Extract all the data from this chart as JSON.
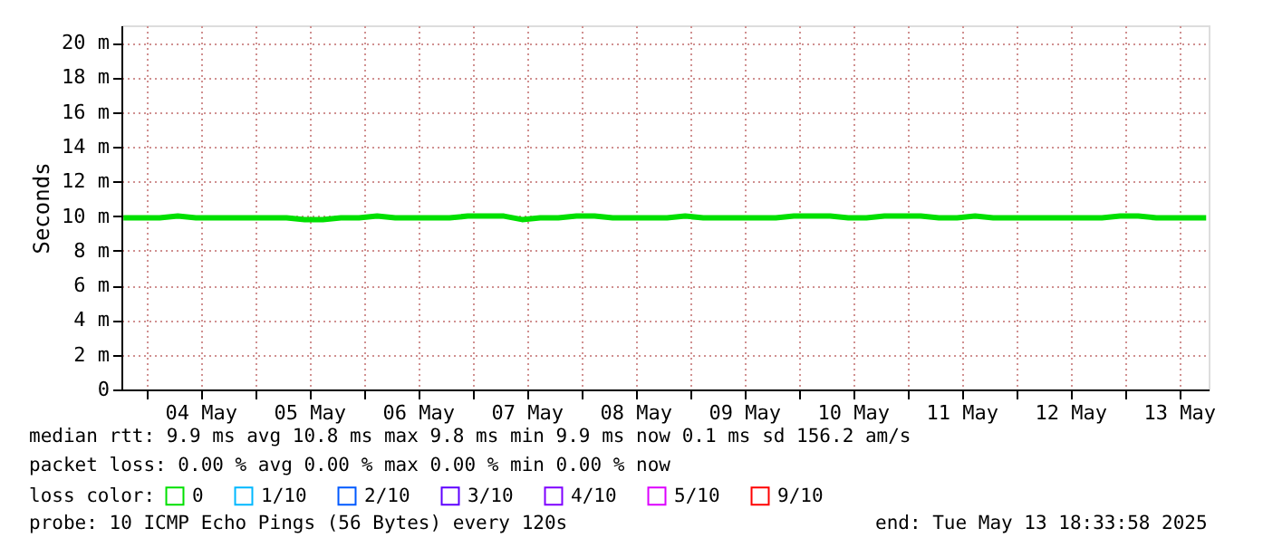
{
  "chart_data": {
    "type": "line",
    "ylabel": "Seconds",
    "legend_title": "loss color:",
    "legend": "bottom",
    "grid": true,
    "marker": "none",
    "line_style": "solid",
    "xlim": [
      "2025-05-03T18:33",
      "2025-05-13T18:33"
    ],
    "ylim": [
      0,
      21
    ],
    "xticks": [
      {
        "value": "2025-05-04T00:00",
        "label": null
      },
      {
        "value": "2025-05-04T12:00",
        "label": "04 May"
      },
      {
        "value": "2025-05-05T00:00",
        "label": null
      },
      {
        "value": "2025-05-05T12:00",
        "label": "05 May"
      },
      {
        "value": "2025-05-06T00:00",
        "label": null
      },
      {
        "value": "2025-05-06T12:00",
        "label": "06 May"
      },
      {
        "value": "2025-05-07T00:00",
        "label": null
      },
      {
        "value": "2025-05-07T12:00",
        "label": "07 May"
      },
      {
        "value": "2025-05-08T00:00",
        "label": null
      },
      {
        "value": "2025-05-08T12:00",
        "label": "08 May"
      },
      {
        "value": "2025-05-09T00:00",
        "label": null
      },
      {
        "value": "2025-05-09T12:00",
        "label": "09 May"
      },
      {
        "value": "2025-05-10T00:00",
        "label": null
      },
      {
        "value": "2025-05-10T12:00",
        "label": "10 May"
      },
      {
        "value": "2025-05-11T00:00",
        "label": null
      },
      {
        "value": "2025-05-11T12:00",
        "label": "11 May"
      },
      {
        "value": "2025-05-12T00:00",
        "label": null
      },
      {
        "value": "2025-05-12T12:00",
        "label": "12 May"
      },
      {
        "value": "2025-05-13T00:00",
        "label": null
      },
      {
        "value": "2025-05-13T12:00",
        "label": "13 May"
      }
    ],
    "yticks": [
      0,
      {
        "value": 2,
        "label": "2 m"
      },
      {
        "value": 4,
        "label": "4 m"
      },
      {
        "value": 6,
        "label": "6 m"
      },
      {
        "value": 8,
        "label": "8 m"
      },
      {
        "value": 10,
        "label": "10 m"
      },
      {
        "value": 12,
        "label": "12 m"
      },
      {
        "value": 14,
        "label": "14 m"
      },
      {
        "value": 16,
        "label": "16 m"
      },
      {
        "value": 18,
        "label": "18 m"
      },
      {
        "value": 20,
        "label": "20 m"
      }
    ],
    "x": [
      "2025-05-03T19:00",
      "2025-05-03T23:00",
      "2025-05-04T03:00",
      "2025-05-04T07:00",
      "2025-05-04T11:00",
      "2025-05-04T15:00",
      "2025-05-04T19:00",
      "2025-05-04T23:00",
      "2025-05-05T03:00",
      "2025-05-05T07:00",
      "2025-05-05T11:00",
      "2025-05-05T15:00",
      "2025-05-05T19:00",
      "2025-05-05T23:00",
      "2025-05-06T03:00",
      "2025-05-06T07:00",
      "2025-05-06T11:00",
      "2025-05-06T15:00",
      "2025-05-06T19:00",
      "2025-05-06T23:00",
      "2025-05-07T03:00",
      "2025-05-07T07:00",
      "2025-05-07T11:00",
      "2025-05-07T15:00",
      "2025-05-07T19:00",
      "2025-05-07T23:00",
      "2025-05-08T03:00",
      "2025-05-08T07:00",
      "2025-05-08T11:00",
      "2025-05-08T15:00",
      "2025-05-08T19:00",
      "2025-05-08T23:00",
      "2025-05-09T03:00",
      "2025-05-09T07:00",
      "2025-05-09T11:00",
      "2025-05-09T15:00",
      "2025-05-09T19:00",
      "2025-05-09T23:00",
      "2025-05-10T03:00",
      "2025-05-10T07:00",
      "2025-05-10T11:00",
      "2025-05-10T15:00",
      "2025-05-10T19:00",
      "2025-05-10T23:00",
      "2025-05-11T03:00",
      "2025-05-11T07:00",
      "2025-05-11T11:00",
      "2025-05-11T15:00",
      "2025-05-11T19:00",
      "2025-05-11T23:00",
      "2025-05-12T03:00",
      "2025-05-12T07:00",
      "2025-05-12T11:00",
      "2025-05-12T15:00",
      "2025-05-12T19:00",
      "2025-05-12T23:00",
      "2025-05-13T03:00",
      "2025-05-13T07:00",
      "2025-05-13T11:00",
      "2025-05-13T15:00",
      "2025-05-13T18:00"
    ],
    "series": [
      {
        "name": "0",
        "color": "#00e000",
        "values": [
          9.9,
          9.9,
          9.9,
          10.0,
          9.9,
          9.9,
          9.9,
          9.9,
          9.9,
          9.9,
          9.8,
          9.8,
          9.9,
          9.9,
          10.0,
          9.9,
          9.9,
          9.9,
          9.9,
          10.0,
          10.0,
          10.0,
          9.8,
          9.9,
          9.9,
          10.0,
          10.0,
          9.9,
          9.9,
          9.9,
          9.9,
          10.0,
          9.9,
          9.9,
          9.9,
          9.9,
          9.9,
          10.0,
          10.0,
          10.0,
          9.9,
          9.9,
          10.0,
          10.0,
          10.0,
          9.9,
          9.9,
          10.0,
          9.9,
          9.9,
          9.9,
          9.9,
          9.9,
          9.9,
          9.9,
          10.0,
          10.0,
          9.9,
          9.9,
          9.9,
          9.9
        ]
      },
      {
        "name": "1/10",
        "color": "#00b8ff",
        "values": [
          null,
          null,
          null,
          null,
          null,
          null,
          null,
          null,
          null,
          null,
          null,
          null,
          null,
          null,
          null,
          null,
          null,
          null,
          null,
          null,
          null,
          null,
          null,
          null,
          null,
          null,
          null,
          null,
          null,
          null,
          null,
          null,
          null,
          null,
          null,
          null,
          null,
          null,
          null,
          null,
          null,
          null,
          null,
          null,
          null,
          null,
          null,
          null,
          null,
          null,
          null,
          null,
          null,
          null,
          null,
          null,
          null,
          null,
          null,
          null,
          null
        ]
      },
      {
        "name": "2/10",
        "color": "#0059ff",
        "values": [
          null,
          null,
          null,
          null,
          null,
          null,
          null,
          null,
          null,
          null,
          null,
          null,
          null,
          null,
          null,
          null,
          null,
          null,
          null,
          null,
          null,
          null,
          null,
          null,
          null,
          null,
          null,
          null,
          null,
          null,
          null,
          null,
          null,
          null,
          null,
          null,
          null,
          null,
          null,
          null,
          null,
          null,
          null,
          null,
          null,
          null,
          null,
          null,
          null,
          null,
          null,
          null,
          null,
          null,
          null,
          null,
          null,
          null,
          null,
          null,
          null
        ]
      },
      {
        "name": "3/10",
        "color": "#5e00ff",
        "values": [
          null,
          null,
          null,
          null,
          null,
          null,
          null,
          null,
          null,
          null,
          null,
          null,
          null,
          null,
          null,
          null,
          null,
          null,
          null,
          null,
          null,
          null,
          null,
          null,
          null,
          null,
          null,
          null,
          null,
          null,
          null,
          null,
          null,
          null,
          null,
          null,
          null,
          null,
          null,
          null,
          null,
          null,
          null,
          null,
          null,
          null,
          null,
          null,
          null,
          null,
          null,
          null,
          null,
          null,
          null,
          null,
          null,
          null,
          null,
          null,
          null
        ]
      },
      {
        "name": "4/10",
        "color": "#7e00ff",
        "values": [
          null,
          null,
          null,
          null,
          null,
          null,
          null,
          null,
          null,
          null,
          null,
          null,
          null,
          null,
          null,
          null,
          null,
          null,
          null,
          null,
          null,
          null,
          null,
          null,
          null,
          null,
          null,
          null,
          null,
          null,
          null,
          null,
          null,
          null,
          null,
          null,
          null,
          null,
          null,
          null,
          null,
          null,
          null,
          null,
          null,
          null,
          null,
          null,
          null,
          null,
          null,
          null,
          null,
          null,
          null,
          null,
          null,
          null,
          null,
          null,
          null
        ]
      },
      {
        "name": "5/10",
        "color": "#dd00ff",
        "values": [
          null,
          null,
          null,
          null,
          null,
          null,
          null,
          null,
          null,
          null,
          null,
          null,
          null,
          null,
          null,
          null,
          null,
          null,
          null,
          null,
          null,
          null,
          null,
          null,
          null,
          null,
          null,
          null,
          null,
          null,
          null,
          null,
          null,
          null,
          null,
          null,
          null,
          null,
          null,
          null,
          null,
          null,
          null,
          null,
          null,
          null,
          null,
          null,
          null,
          null,
          null,
          null,
          null,
          null,
          null,
          null,
          null,
          null,
          null,
          null,
          null
        ]
      },
      {
        "name": "9/10",
        "color": "#ff0000",
        "values": [
          null,
          null,
          null,
          null,
          null,
          null,
          null,
          null,
          null,
          null,
          null,
          null,
          null,
          null,
          null,
          null,
          null,
          null,
          null,
          null,
          null,
          null,
          null,
          null,
          null,
          null,
          null,
          null,
          null,
          null,
          null,
          null,
          null,
          null,
          null,
          null,
          null,
          null,
          null,
          null,
          null,
          null,
          null,
          null,
          null,
          null,
          null,
          null,
          null,
          null,
          null,
          null,
          null,
          null,
          null,
          null,
          null,
          null,
          null,
          null,
          null
        ]
      }
    ],
    "annotations": [
      "median rtt:  9.9 ms avg  10.8 ms max  9.8 ms min  9.9 ms now  0.1 ms sd  156.2   am/s",
      "packet loss: 0.00 % avg  0.00 % max  0.00 % min  0.00 % now",
      "probe:       10 ICMP Echo Pings (56 Bytes) every 120s",
      "end: Tue May 13 18:33:58 2025"
    ]
  }
}
